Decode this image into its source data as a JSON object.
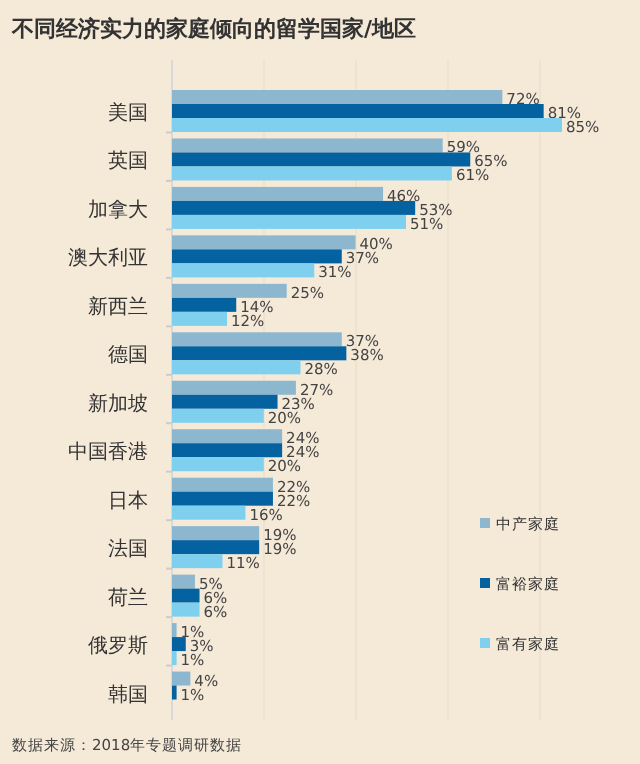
{
  "chart_data": {
    "type": "bar",
    "orientation": "horizontal",
    "title": "不同经济实力的家庭倾向的留学国家/地区",
    "categories": [
      "美国",
      "英国",
      "加拿大",
      "澳大利亚",
      "新西兰",
      "德国",
      "新加坡",
      "中国香港",
      "日本",
      "法国",
      "荷兰",
      "俄罗斯",
      "韩国"
    ],
    "series": [
      {
        "name": "中产家庭",
        "color": "#8db7cf",
        "values": [
          72,
          59,
          46,
          40,
          25,
          37,
          27,
          24,
          22,
          19,
          5,
          1,
          4
        ],
        "value_labels": [
          "72%",
          "59%",
          "46%",
          "40%",
          "25%",
          "37%",
          "27%",
          "24%",
          "22%",
          "19%",
          "5%",
          "1%",
          "4%"
        ]
      },
      {
        "name": "富裕家庭",
        "color": "#0462a1",
        "values": [
          81,
          65,
          53,
          37,
          14,
          38,
          23,
          24,
          22,
          19,
          6,
          3,
          1
        ],
        "value_labels": [
          "81%",
          "65%",
          "53%",
          "37%",
          "14%",
          "38%",
          "23%",
          "24%",
          "22%",
          "19%",
          "6%",
          "3%",
          "1%"
        ]
      },
      {
        "name": "富有家庭",
        "color": "#7ed0ee",
        "values": [
          85,
          61,
          51,
          31,
          12,
          28,
          20,
          20,
          16,
          11,
          6,
          1,
          null
        ],
        "value_labels": [
          "85%",
          "61%",
          "51%",
          "31%",
          "12%",
          "28%",
          "20%",
          "20%",
          "16%",
          "11%",
          "6%",
          "1%",
          null
        ]
      }
    ],
    "legend": "right",
    "annotations": [
      "数据来源：2018年专题调研数据"
    ]
  }
}
